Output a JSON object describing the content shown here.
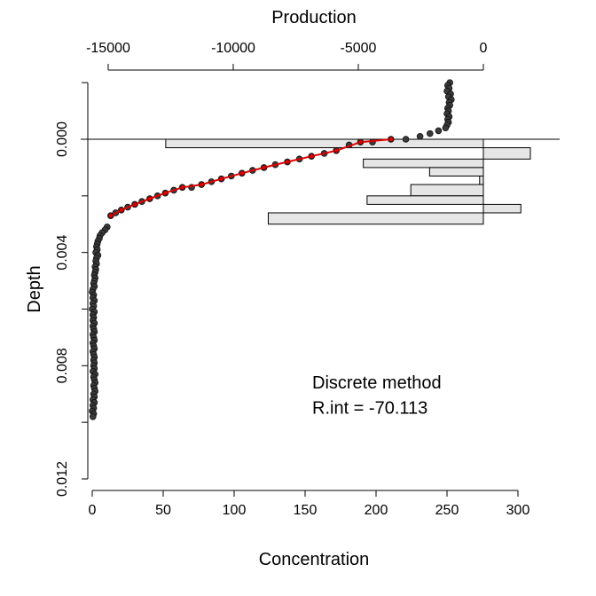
{
  "chart_data": {
    "type": "scatter",
    "axis_titles": {
      "bottom": "Concentration",
      "left": "Depth",
      "top": "Production"
    },
    "x_axis": {
      "label": "Concentration",
      "range": [
        -1.5,
        306
      ],
      "ticks": [
        0,
        50,
        100,
        150,
        200,
        250,
        300
      ],
      "tick_labels": [
        "0",
        "50",
        "100",
        "150",
        "200",
        "250",
        "300"
      ]
    },
    "y_axis": {
      "label": "Depth",
      "reversed": true,
      "range": [
        -0.002,
        0.012
      ],
      "ticks": [
        -0.002,
        0.0,
        0.002,
        0.004,
        0.006,
        0.008,
        0.01,
        0.012
      ],
      "tick_labels": [
        "",
        "0.000",
        "",
        "0.004",
        "",
        "0.008",
        "",
        "0.012"
      ]
    },
    "top_axis": {
      "label": "Production",
      "range": [
        -15000,
        0
      ],
      "ticks": [
        -15000,
        -10000,
        -5000,
        0
      ],
      "tick_labels": [
        "-15000",
        "-10000",
        "-5000",
        "0"
      ],
      "axis_line_range": [
        -15000,
        0
      ]
    },
    "zero_reference_line_depth": 0.0,
    "production_bars": {
      "color": "#e6e6e6",
      "edge_color": "#000000",
      "intervals": [
        {
          "top": 0.0,
          "bottom": 0.0003,
          "value": -12700
        },
        {
          "top": 0.0003,
          "bottom": 0.0007,
          "value": 1880
        },
        {
          "top": 0.0007,
          "bottom": 0.001,
          "value": -4800
        },
        {
          "top": 0.001,
          "bottom": 0.0013,
          "value": -2150
        },
        {
          "top": 0.0013,
          "bottom": 0.0016,
          "value": -150
        },
        {
          "top": 0.0016,
          "bottom": 0.002,
          "value": -2900
        },
        {
          "top": 0.002,
          "bottom": 0.0023,
          "value": -4650
        },
        {
          "top": 0.0023,
          "bottom": 0.0026,
          "value": 1500
        },
        {
          "top": 0.0026,
          "bottom": 0.003,
          "value": -8600
        }
      ]
    },
    "series": [
      {
        "marker": "dot",
        "color": "#3a3a3a",
        "points": [
          {
            "x": 252.0,
            "y": -0.002
          },
          {
            "x": 250.5,
            "y": -0.0019
          },
          {
            "x": 251.5,
            "y": -0.0018
          },
          {
            "x": 250.0,
            "y": -0.0017
          },
          {
            "x": 252.5,
            "y": -0.0016
          },
          {
            "x": 251.0,
            "y": -0.0015
          },
          {
            "x": 253.0,
            "y": -0.0014
          },
          {
            "x": 251.5,
            "y": -0.0013
          },
          {
            "x": 252.0,
            "y": -0.0012
          },
          {
            "x": 250.5,
            "y": -0.0011
          },
          {
            "x": 251.0,
            "y": -0.001
          },
          {
            "x": 250.0,
            "y": -0.0009
          },
          {
            "x": 251.5,
            "y": -0.0008
          },
          {
            "x": 250.5,
            "y": -0.0007
          },
          {
            "x": 251.0,
            "y": -0.0006
          },
          {
            "x": 250.0,
            "y": -0.0005
          },
          {
            "x": 249.0,
            "y": -0.0004
          },
          {
            "x": 244.0,
            "y": -0.0003
          },
          {
            "x": 238.0,
            "y": -0.0002
          },
          {
            "x": 231.0,
            "y": -0.0001
          },
          {
            "x": 221.0,
            "y": 0.0
          },
          {
            "x": 210.5,
            "y": 0.0
          },
          {
            "x": 197.5,
            "y": 0.0001
          },
          {
            "x": 189.0,
            "y": 0.0001
          },
          {
            "x": 181.0,
            "y": 0.0002
          },
          {
            "x": 172.0,
            "y": 0.0004
          },
          {
            "x": 163.5,
            "y": 0.0005
          },
          {
            "x": 154.5,
            "y": 0.0006
          },
          {
            "x": 146.0,
            "y": 0.0007
          },
          {
            "x": 137.5,
            "y": 0.0008
          },
          {
            "x": 129.0,
            "y": 0.0009
          },
          {
            "x": 121.0,
            "y": 0.001
          },
          {
            "x": 113.0,
            "y": 0.0011
          },
          {
            "x": 105.5,
            "y": 0.0012
          },
          {
            "x": 98.0,
            "y": 0.0013
          },
          {
            "x": 91.0,
            "y": 0.0014
          },
          {
            "x": 84.0,
            "y": 0.0015
          },
          {
            "x": 77.0,
            "y": 0.0016
          },
          {
            "x": 70.0,
            "y": 0.0017
          },
          {
            "x": 63.5,
            "y": 0.0017
          },
          {
            "x": 57.5,
            "y": 0.0018
          },
          {
            "x": 51.5,
            "y": 0.0019
          },
          {
            "x": 46.0,
            "y": 0.002
          },
          {
            "x": 40.5,
            "y": 0.0021
          },
          {
            "x": 35.0,
            "y": 0.0022
          },
          {
            "x": 30.0,
            "y": 0.0023
          },
          {
            "x": 25.0,
            "y": 0.0024
          },
          {
            "x": 20.5,
            "y": 0.0025
          },
          {
            "x": 16.5,
            "y": 0.0026
          },
          {
            "x": 13.0,
            "y": 0.0027
          },
          {
            "x": 10.5,
            "y": 0.0031
          },
          {
            "x": 9.0,
            "y": 0.0032
          },
          {
            "x": 7.0,
            "y": 0.0033
          },
          {
            "x": 5.5,
            "y": 0.0034
          },
          {
            "x": 5.0,
            "y": 0.0035
          },
          {
            "x": 4.0,
            "y": 0.0036
          },
          {
            "x": 3.5,
            "y": 0.0037
          },
          {
            "x": 3.0,
            "y": 0.0038
          },
          {
            "x": 3.5,
            "y": 0.0039
          },
          {
            "x": 2.5,
            "y": 0.004
          },
          {
            "x": 4.0,
            "y": 0.0041
          },
          {
            "x": 3.0,
            "y": 0.0042
          },
          {
            "x": 2.5,
            "y": 0.0043
          },
          {
            "x": 3.0,
            "y": 0.0044
          },
          {
            "x": 2.0,
            "y": 0.0045
          },
          {
            "x": 2.5,
            "y": 0.0046
          },
          {
            "x": 2.0,
            "y": 0.0047
          },
          {
            "x": 1.5,
            "y": 0.0048
          },
          {
            "x": 2.0,
            "y": 0.0049
          },
          {
            "x": 1.5,
            "y": 0.005
          },
          {
            "x": 1.0,
            "y": 0.0051
          },
          {
            "x": 1.5,
            "y": 0.0052
          },
          {
            "x": 0.5,
            "y": 0.0053
          },
          {
            "x": 0.0,
            "y": 0.0054
          },
          {
            "x": 1.0,
            "y": 0.0055
          },
          {
            "x": 0.5,
            "y": 0.0056
          },
          {
            "x": 1.5,
            "y": 0.0057
          },
          {
            "x": 0.5,
            "y": 0.0058
          },
          {
            "x": 1.0,
            "y": 0.0059
          },
          {
            "x": 0.0,
            "y": 0.006
          },
          {
            "x": 1.5,
            "y": 0.0061
          },
          {
            "x": 0.5,
            "y": 0.0062
          },
          {
            "x": 1.0,
            "y": 0.0063
          },
          {
            "x": 0.5,
            "y": 0.0064
          },
          {
            "x": 1.5,
            "y": 0.0065
          },
          {
            "x": 0.5,
            "y": 0.0066
          },
          {
            "x": 1.0,
            "y": 0.0067
          },
          {
            "x": 1.5,
            "y": 0.0068
          },
          {
            "x": 0.5,
            "y": 0.0069
          },
          {
            "x": 1.0,
            "y": 0.007
          },
          {
            "x": 1.5,
            "y": 0.0071
          },
          {
            "x": 0.5,
            "y": 0.0072
          },
          {
            "x": 1.0,
            "y": 0.0073
          },
          {
            "x": 1.5,
            "y": 0.0074
          },
          {
            "x": 0.5,
            "y": 0.0075
          },
          {
            "x": 1.0,
            "y": 0.0076
          },
          {
            "x": 1.5,
            "y": 0.0077
          },
          {
            "x": 1.0,
            "y": 0.0078
          },
          {
            "x": 1.5,
            "y": 0.0079
          },
          {
            "x": 1.0,
            "y": 0.008
          },
          {
            "x": 1.5,
            "y": 0.0081
          },
          {
            "x": 0.5,
            "y": 0.0082
          },
          {
            "x": 2.0,
            "y": 0.0083
          },
          {
            "x": 1.0,
            "y": 0.0084
          },
          {
            "x": 1.5,
            "y": 0.0085
          },
          {
            "x": 2.0,
            "y": 0.0086
          },
          {
            "x": 1.0,
            "y": 0.0087
          },
          {
            "x": 1.5,
            "y": 0.0088
          },
          {
            "x": 2.0,
            "y": 0.0089
          },
          {
            "x": 1.0,
            "y": 0.009
          },
          {
            "x": 1.5,
            "y": 0.0091
          },
          {
            "x": 0.5,
            "y": 0.0092
          },
          {
            "x": 1.5,
            "y": 0.0093
          },
          {
            "x": 0.5,
            "y": 0.0094
          },
          {
            "x": 1.0,
            "y": 0.0095
          },
          {
            "x": 0.0,
            "y": 0.0096
          },
          {
            "x": 1.0,
            "y": 0.0097
          },
          {
            "x": 0.5,
            "y": 0.0098
          }
        ]
      },
      {
        "marker": "line",
        "color": "#e00000",
        "points": [
          {
            "x": 210.5,
            "y": 0.0
          },
          {
            "x": 189.0,
            "y": 0.0001
          },
          {
            "x": 172.0,
            "y": 0.0004
          },
          {
            "x": 154.5,
            "y": 0.0006
          },
          {
            "x": 137.5,
            "y": 0.0008
          },
          {
            "x": 121.0,
            "y": 0.001
          },
          {
            "x": 105.5,
            "y": 0.0012
          },
          {
            "x": 91.0,
            "y": 0.0014
          },
          {
            "x": 77.0,
            "y": 0.0016
          },
          {
            "x": 63.5,
            "y": 0.0017
          },
          {
            "x": 51.5,
            "y": 0.0019
          },
          {
            "x": 40.5,
            "y": 0.0021
          },
          {
            "x": 30.0,
            "y": 0.0023
          },
          {
            "x": 20.5,
            "y": 0.0025
          },
          {
            "x": 13.0,
            "y": 0.0027
          }
        ]
      }
    ],
    "annotations": [
      {
        "text": "Discrete method",
        "x": 155,
        "y": 0.0088
      },
      {
        "text": "R.int = -70.113",
        "x": 155,
        "y": 0.0097
      }
    ]
  }
}
